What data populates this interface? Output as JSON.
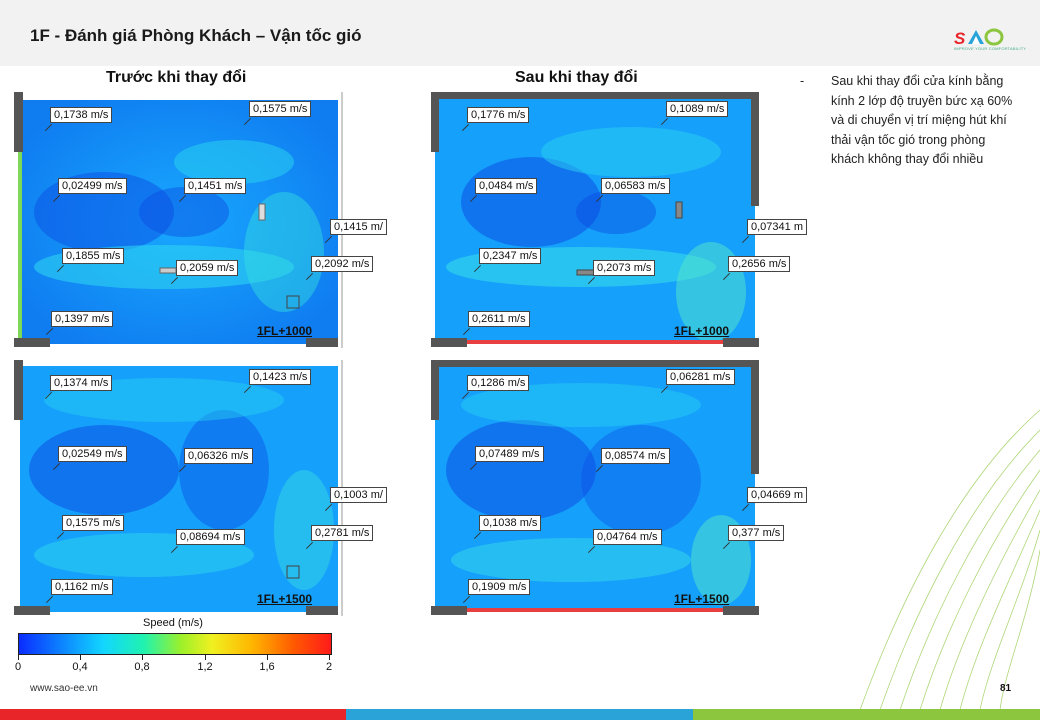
{
  "header": {
    "title": "1F - Đánh giá Phòng Khách – Vận tốc gió",
    "logo_text": "SAO",
    "logo_tagline": "IMPROVE YOUR COMFORTABILITY"
  },
  "columns": {
    "before": "Trước khi thay đổi",
    "after": "Sau khi thay đổi"
  },
  "panels": {
    "before_1000": {
      "level": "1FL+1000",
      "values": [
        "0,1738 m/s",
        "0,1575 m/s",
        "0,02499 m/s",
        "0,1451 m/s",
        "0,1415 m/",
        "0,1855 m/s",
        "0,2059 m/s",
        "0,2092 m/s",
        "0,1397 m/s"
      ]
    },
    "after_1000": {
      "level": "1FL+1000",
      "values": [
        "0,1776 m/s",
        "0,1089 m/s",
        "0,0484 m/s",
        "0,06583 m/s",
        "0,07341 m",
        "0,2347 m/s",
        "0,2073 m/s",
        "0,2656 m/s",
        "0,2611 m/s"
      ]
    },
    "before_1500": {
      "level": "1FL+1500",
      "values": [
        "0,1374 m/s",
        "0,1423 m/s",
        "0,02549 m/s",
        "0,06326 m/s",
        "0,1003 m/",
        "0,1575 m/s",
        "0,08694 m/s",
        "0,2781 m/s",
        "0,1162 m/s"
      ]
    },
    "after_1500": {
      "level": "1FL+1500",
      "values": [
        "0,1286 m/s",
        "0,06281 m/s",
        "0,07489 m/s",
        "0,08574 m/s",
        "0,04669 m",
        "0,1038 m/s",
        "0,04764 m/s",
        "0,377 m/s",
        "0,1909 m/s"
      ]
    }
  },
  "note": {
    "bullet": "-",
    "text": "Sau khi thay đổi cửa kính bằng kính 2 lớp độ truyền bức xạ 60% và di chuyển vị trí miệng hút khí thải vận tốc gió trong phòng khách không thay đổi nhiều"
  },
  "legend": {
    "title": "Speed (m/s)",
    "ticks": [
      "0",
      "0,4",
      "0,8",
      "1,2",
      "1,6",
      "2"
    ]
  },
  "footer": {
    "website": "www.sao-ee.vn",
    "page": "81"
  },
  "colors": {
    "red": "#e8262a",
    "blue": "#2aa3d8",
    "green": "#8cc63f"
  }
}
